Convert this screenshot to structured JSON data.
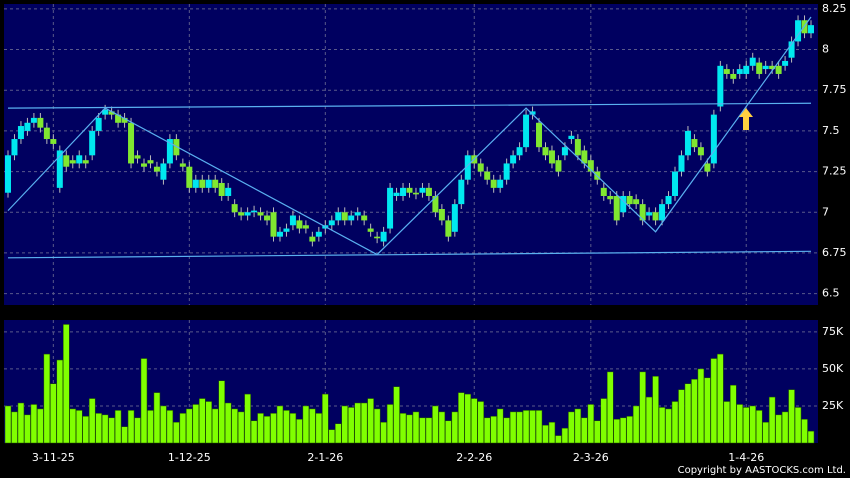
{
  "chart_data": {
    "type": "candlestick",
    "copyright": "Copyright by AASTOCKS.com Ltd.",
    "categories": [
      null,
      null,
      null,
      null,
      null,
      null,
      null,
      "3-11-25",
      null,
      null,
      null,
      null,
      null,
      null,
      null,
      null,
      null,
      null,
      null,
      null,
      null,
      null,
      null,
      null,
      null,
      null,
      null,
      null,
      "1-12-25",
      null,
      null,
      null,
      null,
      null,
      null,
      null,
      null,
      null,
      null,
      null,
      null,
      null,
      null,
      null,
      null,
      null,
      null,
      null,
      null,
      "2-1-26",
      null,
      null,
      null,
      null,
      null,
      null,
      null,
      null,
      null,
      null,
      null,
      null,
      null,
      null,
      null,
      null,
      null,
      null,
      null,
      null,
      null,
      null,
      "2-2-26",
      null,
      null,
      null,
      null,
      null,
      null,
      null,
      null,
      null,
      null,
      null,
      null,
      null,
      null,
      null,
      null,
      null,
      "2-3-26",
      null,
      null,
      null,
      null,
      null,
      null,
      null,
      null,
      null,
      null,
      null,
      null,
      null,
      null,
      null,
      null,
      null,
      null,
      null,
      null,
      null,
      null,
      null,
      "1-4-26",
      null,
      null,
      null,
      null,
      null,
      null,
      null,
      null,
      null,
      null
    ],
    "open": [
      7.12,
      7.35,
      7.45,
      7.5,
      7.55,
      7.58,
      7.52,
      7.45,
      7.15,
      7.35,
      7.32,
      7.3,
      7.32,
      7.35,
      7.5,
      7.6,
      7.62,
      7.6,
      7.58,
      7.55,
      7.35,
      7.3,
      7.32,
      7.28,
      7.2,
      7.3,
      7.45,
      7.3,
      7.28,
      7.15,
      7.2,
      7.15,
      7.2,
      7.18,
      7.1,
      7.05,
      7.0,
      6.98,
      7.0,
      7.0,
      6.98,
      7.0,
      6.85,
      6.88,
      6.92,
      6.95,
      6.92,
      6.85,
      6.85,
      6.9,
      6.92,
      6.95,
      7.0,
      6.95,
      6.98,
      6.98,
      6.9,
      6.85,
      6.82,
      6.9,
      7.1,
      7.1,
      7.15,
      7.12,
      7.12,
      7.15,
      7.1,
      7.02,
      6.95,
      6.88,
      7.05,
      7.2,
      7.35,
      7.3,
      7.25,
      7.2,
      7.15,
      7.2,
      7.3,
      7.35,
      7.4,
      7.6,
      7.55,
      7.4,
      7.38,
      7.32,
      7.35,
      7.45,
      7.45,
      7.38,
      7.32,
      7.25,
      7.15,
      7.1,
      7.1,
      7.0,
      7.1,
      7.08,
      7.05,
      6.98,
      7.0,
      6.95,
      7.05,
      7.1,
      7.25,
      7.35,
      7.45,
      7.4,
      7.3,
      7.3,
      7.65,
      7.88,
      7.85,
      7.85,
      7.85,
      7.9,
      7.92,
      7.88,
      7.9,
      7.9,
      7.9,
      7.95,
      8.05,
      8.18,
      8.1
    ],
    "high": [
      7.38,
      7.48,
      7.56,
      7.58,
      7.61,
      7.61,
      7.55,
      7.48,
      7.41,
      7.38,
      7.35,
      7.38,
      7.35,
      7.53,
      7.61,
      7.66,
      7.65,
      7.63,
      7.61,
      7.58,
      7.38,
      7.33,
      7.35,
      7.31,
      7.33,
      7.48,
      7.48,
      7.33,
      7.31,
      7.23,
      7.23,
      7.23,
      7.23,
      7.21,
      7.18,
      7.08,
      7.03,
      7.03,
      7.04,
      7.03,
      7.01,
      7.03,
      6.91,
      6.93,
      7.01,
      6.98,
      6.95,
      6.88,
      6.91,
      6.95,
      6.98,
      7.03,
      7.03,
      7.01,
      7.03,
      7.01,
      6.93,
      6.88,
      6.91,
      7.18,
      7.15,
      7.18,
      7.18,
      7.15,
      7.18,
      7.18,
      7.13,
      7.05,
      6.98,
      7.08,
      7.23,
      7.38,
      7.38,
      7.33,
      7.28,
      7.23,
      7.23,
      7.33,
      7.38,
      7.43,
      7.63,
      7.65,
      7.58,
      7.43,
      7.41,
      7.35,
      7.43,
      7.5,
      7.48,
      7.41,
      7.35,
      7.28,
      7.18,
      7.13,
      7.13,
      7.13,
      7.13,
      7.11,
      7.08,
      7.03,
      7.03,
      7.08,
      7.13,
      7.28,
      7.38,
      7.53,
      7.48,
      7.43,
      7.33,
      7.63,
      7.93,
      7.91,
      7.88,
      7.91,
      7.93,
      7.98,
      7.95,
      7.93,
      7.93,
      7.93,
      7.96,
      8.08,
      8.21,
      8.21,
      8.18
    ],
    "low": [
      7.09,
      7.32,
      7.42,
      7.47,
      7.52,
      7.49,
      7.42,
      7.39,
      7.12,
      7.25,
      7.27,
      7.27,
      7.27,
      7.32,
      7.47,
      7.57,
      7.57,
      7.52,
      7.52,
      7.27,
      7.3,
      7.25,
      7.27,
      7.22,
      7.17,
      7.27,
      7.32,
      7.25,
      7.12,
      7.12,
      7.12,
      7.12,
      7.12,
      7.07,
      7.07,
      6.97,
      6.95,
      6.95,
      6.97,
      6.95,
      6.92,
      6.82,
      6.82,
      6.85,
      6.89,
      6.87,
      6.87,
      6.79,
      6.82,
      6.87,
      6.89,
      6.92,
      6.92,
      6.92,
      6.95,
      6.92,
      6.85,
      6.81,
      6.79,
      6.87,
      7.07,
      7.07,
      7.09,
      7.08,
      7.09,
      7.07,
      6.97,
      6.92,
      6.82,
      6.85,
      7.02,
      7.17,
      7.27,
      7.22,
      7.17,
      7.12,
      7.12,
      7.17,
      7.27,
      7.32,
      7.37,
      7.57,
      7.37,
      7.32,
      7.27,
      7.22,
      7.32,
      7.42,
      7.32,
      7.27,
      7.22,
      7.17,
      7.07,
      7.05,
      6.92,
      6.97,
      7.02,
      7.02,
      6.92,
      6.95,
      6.92,
      6.92,
      7.02,
      7.07,
      7.22,
      7.32,
      7.37,
      7.32,
      7.22,
      7.27,
      7.62,
      7.82,
      7.79,
      7.82,
      7.82,
      7.87,
      7.82,
      7.85,
      7.85,
      7.82,
      7.87,
      7.92,
      8.02,
      8.07,
      8.07
    ],
    "close": [
      7.35,
      7.45,
      7.53,
      7.55,
      7.58,
      7.52,
      7.45,
      7.42,
      7.38,
      7.28,
      7.3,
      7.35,
      7.3,
      7.5,
      7.58,
      7.63,
      7.6,
      7.55,
      7.55,
      7.3,
      7.33,
      7.28,
      7.3,
      7.25,
      7.3,
      7.45,
      7.35,
      7.28,
      7.15,
      7.2,
      7.15,
      7.2,
      7.15,
      7.1,
      7.15,
      7.0,
      6.98,
      7.0,
      7.01,
      6.98,
      6.95,
      6.85,
      6.88,
      6.9,
      6.98,
      6.9,
      6.9,
      6.82,
      6.88,
      6.92,
      6.95,
      7.0,
      6.95,
      6.98,
      7.0,
      6.95,
      6.88,
      6.84,
      6.88,
      7.15,
      7.12,
      7.15,
      7.12,
      7.11,
      7.15,
      7.1,
      7.0,
      6.95,
      6.85,
      7.05,
      7.2,
      7.35,
      7.3,
      7.25,
      7.2,
      7.15,
      7.2,
      7.3,
      7.35,
      7.4,
      7.6,
      7.62,
      7.4,
      7.35,
      7.3,
      7.25,
      7.4,
      7.47,
      7.35,
      7.3,
      7.25,
      7.2,
      7.1,
      7.08,
      6.95,
      7.1,
      7.05,
      7.05,
      6.95,
      7.0,
      6.95,
      7.05,
      7.1,
      7.25,
      7.35,
      7.5,
      7.4,
      7.35,
      7.25,
      7.6,
      7.9,
      7.85,
      7.82,
      7.88,
      7.9,
      7.95,
      7.85,
      7.9,
      7.88,
      7.85,
      7.93,
      8.05,
      8.18,
      8.1,
      8.15
    ],
    "volume": [
      25000,
      21000,
      27000,
      19000,
      26000,
      23000,
      60000,
      40000,
      56000,
      80000,
      23000,
      22000,
      18000,
      30000,
      20000,
      19000,
      17000,
      22000,
      11000,
      22000,
      17000,
      57000,
      22000,
      34000,
      25000,
      22000,
      14000,
      20000,
      23000,
      26000,
      30000,
      28000,
      23000,
      42000,
      27000,
      23000,
      21000,
      33000,
      15000,
      20000,
      18000,
      20000,
      25000,
      22000,
      20000,
      16000,
      25000,
      23000,
      20000,
      33000,
      9000,
      13000,
      25000,
      24000,
      27000,
      27000,
      30000,
      23000,
      14000,
      26000,
      38000,
      20000,
      19000,
      21000,
      17000,
      17000,
      25000,
      21000,
      15000,
      21000,
      34000,
      33000,
      30000,
      28000,
      17000,
      18000,
      23000,
      17000,
      21000,
      21000,
      22000,
      22000,
      22000,
      12000,
      14000,
      5000,
      10000,
      21000,
      23000,
      17000,
      26000,
      15000,
      30000,
      48000,
      16000,
      17000,
      18000,
      25000,
      48000,
      31000,
      45000,
      24000,
      23000,
      28000,
      36000,
      40000,
      43000,
      50000,
      44000,
      57000,
      60000,
      28000,
      39000,
      26000,
      24000,
      25000,
      22000,
      14000,
      31000,
      19000,
      21000,
      36000,
      24000,
      16000,
      8000
    ],
    "up_color": "#00e8f0",
    "down_color": "#80e830",
    "volume_color": "#80ff00",
    "ylim": [
      6.43,
      8.28
    ],
    "yticks": [
      6.5,
      6.75,
      7,
      7.25,
      7.5,
      7.75,
      8,
      8.25
    ],
    "volume_ylim": [
      0,
      83000
    ],
    "volume_yticks": [
      {
        "value": 25000,
        "label": "25K"
      },
      {
        "value": 50000,
        "label": "50K"
      },
      {
        "value": 75000,
        "label": "75K"
      }
    ],
    "grid": true,
    "trendline_color": "#5ab0f0",
    "trendlines": [
      {
        "points": [
          [
            0,
            7.64
          ],
          [
            124,
            7.67
          ]
        ]
      },
      {
        "points": [
          [
            0,
            6.72
          ],
          [
            124,
            6.76
          ]
        ]
      },
      {
        "points": [
          [
            0,
            7.01
          ],
          [
            15,
            7.64
          ],
          [
            57,
            6.74
          ],
          [
            80,
            7.64
          ],
          [
            100,
            6.88
          ],
          [
            124,
            8.2
          ]
        ]
      }
    ]
  }
}
